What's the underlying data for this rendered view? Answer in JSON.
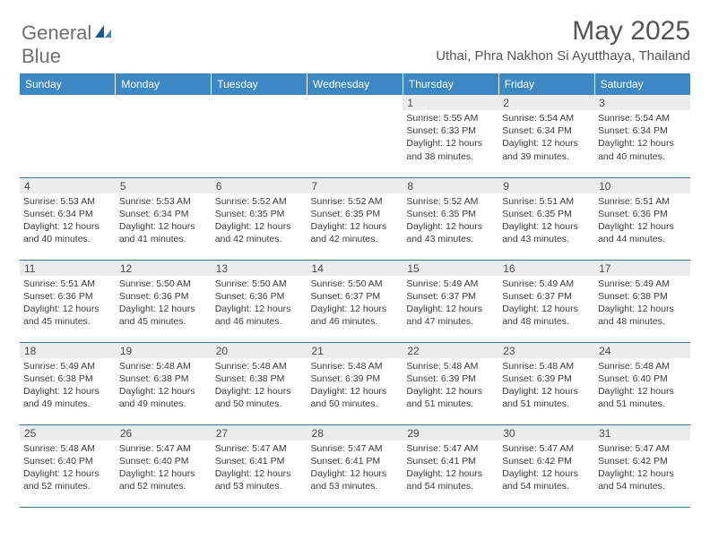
{
  "logo": {
    "part1": "General",
    "part2": "Blue"
  },
  "title": "May 2025",
  "location": "Uthai, Phra Nakhon Si Ayutthaya, Thailand",
  "colors": {
    "header_bg": "#3b88c4",
    "header_text": "#ffffff",
    "daynum_bg": "#ececec",
    "border": "#3b6f9e",
    "logo_text": "#6f6f6f",
    "logo_blue_dark": "#1e5a8e",
    "logo_blue_light": "#3b88c4"
  },
  "weekdays": [
    "Sunday",
    "Monday",
    "Tuesday",
    "Wednesday",
    "Thursday",
    "Friday",
    "Saturday"
  ],
  "weeks": [
    [
      null,
      null,
      null,
      null,
      {
        "n": "1",
        "sr": "5:55 AM",
        "ss": "6:33 PM",
        "dl": "12 hours and 38 minutes."
      },
      {
        "n": "2",
        "sr": "5:54 AM",
        "ss": "6:34 PM",
        "dl": "12 hours and 39 minutes."
      },
      {
        "n": "3",
        "sr": "5:54 AM",
        "ss": "6:34 PM",
        "dl": "12 hours and 40 minutes."
      }
    ],
    [
      {
        "n": "4",
        "sr": "5:53 AM",
        "ss": "6:34 PM",
        "dl": "12 hours and 40 minutes."
      },
      {
        "n": "5",
        "sr": "5:53 AM",
        "ss": "6:34 PM",
        "dl": "12 hours and 41 minutes."
      },
      {
        "n": "6",
        "sr": "5:52 AM",
        "ss": "6:35 PM",
        "dl": "12 hours and 42 minutes."
      },
      {
        "n": "7",
        "sr": "5:52 AM",
        "ss": "6:35 PM",
        "dl": "12 hours and 42 minutes."
      },
      {
        "n": "8",
        "sr": "5:52 AM",
        "ss": "6:35 PM",
        "dl": "12 hours and 43 minutes."
      },
      {
        "n": "9",
        "sr": "5:51 AM",
        "ss": "6:35 PM",
        "dl": "12 hours and 43 minutes."
      },
      {
        "n": "10",
        "sr": "5:51 AM",
        "ss": "6:36 PM",
        "dl": "12 hours and 44 minutes."
      }
    ],
    [
      {
        "n": "11",
        "sr": "5:51 AM",
        "ss": "6:36 PM",
        "dl": "12 hours and 45 minutes."
      },
      {
        "n": "12",
        "sr": "5:50 AM",
        "ss": "6:36 PM",
        "dl": "12 hours and 45 minutes."
      },
      {
        "n": "13",
        "sr": "5:50 AM",
        "ss": "6:36 PM",
        "dl": "12 hours and 46 minutes."
      },
      {
        "n": "14",
        "sr": "5:50 AM",
        "ss": "6:37 PM",
        "dl": "12 hours and 46 minutes."
      },
      {
        "n": "15",
        "sr": "5:49 AM",
        "ss": "6:37 PM",
        "dl": "12 hours and 47 minutes."
      },
      {
        "n": "16",
        "sr": "5:49 AM",
        "ss": "6:37 PM",
        "dl": "12 hours and 48 minutes."
      },
      {
        "n": "17",
        "sr": "5:49 AM",
        "ss": "6:38 PM",
        "dl": "12 hours and 48 minutes."
      }
    ],
    [
      {
        "n": "18",
        "sr": "5:49 AM",
        "ss": "6:38 PM",
        "dl": "12 hours and 49 minutes."
      },
      {
        "n": "19",
        "sr": "5:48 AM",
        "ss": "6:38 PM",
        "dl": "12 hours and 49 minutes."
      },
      {
        "n": "20",
        "sr": "5:48 AM",
        "ss": "6:38 PM",
        "dl": "12 hours and 50 minutes."
      },
      {
        "n": "21",
        "sr": "5:48 AM",
        "ss": "6:39 PM",
        "dl": "12 hours and 50 minutes."
      },
      {
        "n": "22",
        "sr": "5:48 AM",
        "ss": "6:39 PM",
        "dl": "12 hours and 51 minutes."
      },
      {
        "n": "23",
        "sr": "5:48 AM",
        "ss": "6:39 PM",
        "dl": "12 hours and 51 minutes."
      },
      {
        "n": "24",
        "sr": "5:48 AM",
        "ss": "6:40 PM",
        "dl": "12 hours and 51 minutes."
      }
    ],
    [
      {
        "n": "25",
        "sr": "5:48 AM",
        "ss": "6:40 PM",
        "dl": "12 hours and 52 minutes."
      },
      {
        "n": "26",
        "sr": "5:47 AM",
        "ss": "6:40 PM",
        "dl": "12 hours and 52 minutes."
      },
      {
        "n": "27",
        "sr": "5:47 AM",
        "ss": "6:41 PM",
        "dl": "12 hours and 53 minutes."
      },
      {
        "n": "28",
        "sr": "5:47 AM",
        "ss": "6:41 PM",
        "dl": "12 hours and 53 minutes."
      },
      {
        "n": "29",
        "sr": "5:47 AM",
        "ss": "6:41 PM",
        "dl": "12 hours and 54 minutes."
      },
      {
        "n": "30",
        "sr": "5:47 AM",
        "ss": "6:42 PM",
        "dl": "12 hours and 54 minutes."
      },
      {
        "n": "31",
        "sr": "5:47 AM",
        "ss": "6:42 PM",
        "dl": "12 hours and 54 minutes."
      }
    ]
  ],
  "labels": {
    "sunrise": "Sunrise:",
    "sunset": "Sunset:",
    "daylight": "Daylight:"
  }
}
